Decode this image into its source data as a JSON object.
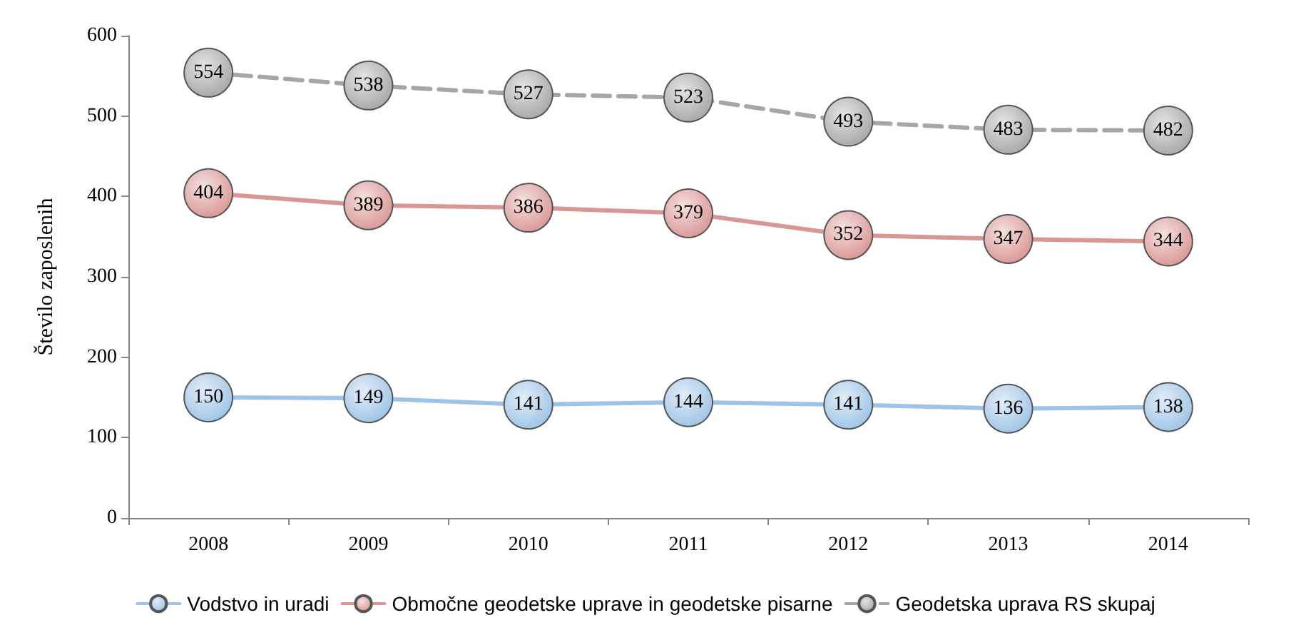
{
  "chart_data": {
    "type": "line",
    "ylabel": "Število zaposlenih",
    "categories": [
      "2008",
      "2009",
      "2010",
      "2011",
      "2012",
      "2013",
      "2014"
    ],
    "series": [
      {
        "name": "Vodstvo in uradi",
        "color": "#9dc3e6",
        "values": [
          150,
          149,
          141,
          144,
          141,
          136,
          138
        ]
      },
      {
        "name": "Območne geodetske uprave in geodetske pisarne",
        "color": "#d99694",
        "values": [
          404,
          389,
          386,
          379,
          352,
          347,
          344
        ]
      },
      {
        "name": "Geodetska uprava RS skupaj",
        "color": "#a6a6a6",
        "line_style": "dashed",
        "values": [
          554,
          538,
          527,
          523,
          493,
          483,
          482
        ]
      }
    ],
    "ylim": [
      0,
      600
    ],
    "yticks": [
      0,
      100,
      200,
      300,
      400,
      500,
      600
    ],
    "grid": false,
    "legend": "bottom",
    "marker": "circle",
    "line_style": "solid",
    "data_labels": true
  }
}
